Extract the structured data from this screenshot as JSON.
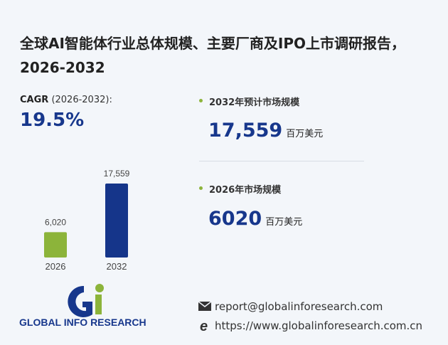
{
  "title": "全球AI智能体行业总体规模、主要厂商及IPO上市调研报告，2026-2032",
  "cagr": {
    "label": "CAGR",
    "period": "(2026-2032):",
    "value": "19.5%"
  },
  "stats": [
    {
      "label": "2032年预计市场规模",
      "value": "17,559",
      "unit": "百万美元"
    },
    {
      "label": "2026年市场规模",
      "value": "6020",
      "unit": "百万美元"
    }
  ],
  "logo": "GLOBAL INFO RESEARCH",
  "contact": {
    "email": "report@globalinforesearch.com",
    "url": "https://www.globalinforesearch.com.cn"
  },
  "chart_data": {
    "type": "bar",
    "categories": [
      "2026",
      "2032"
    ],
    "values": [
      6020,
      17559
    ],
    "value_labels": [
      "6,020",
      "17,559"
    ],
    "colors": [
      "#8cb43a",
      "#15358a"
    ]
  }
}
